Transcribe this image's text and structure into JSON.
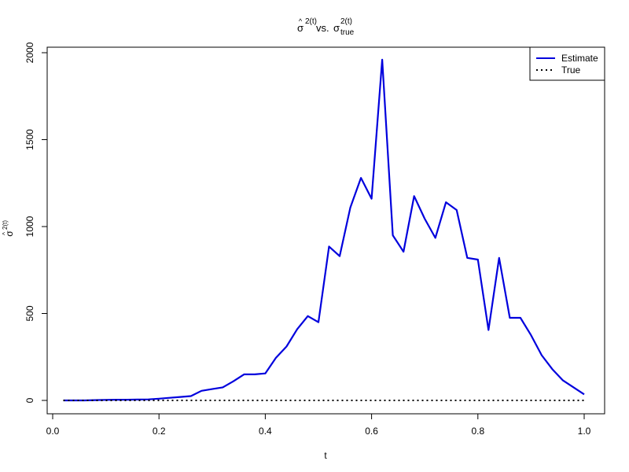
{
  "chart_data": {
    "type": "line",
    "title": {
      "sigma": "σ",
      "hat": "^",
      "sup_left": "2(t)",
      "vs": "vs.",
      "sup_right": "2(t)",
      "sub_right": "true"
    },
    "xlabel": "t",
    "ylabel": {
      "sigma": "σ",
      "hat": "^",
      "sup": "2(t)"
    },
    "xlim": [
      0.0,
      1.0
    ],
    "ylim": [
      0,
      2000
    ],
    "xticks": [
      0.0,
      0.2,
      0.4,
      0.6,
      0.8,
      1.0
    ],
    "xtick_labels": [
      "0.0",
      "0.2",
      "0.4",
      "0.6",
      "0.8",
      "1.0"
    ],
    "yticks": [
      0,
      500,
      1000,
      1500,
      2000
    ],
    "ytick_labels": [
      "0",
      "500",
      "1000",
      "1500",
      "2000"
    ],
    "grid": false,
    "legend_position": "top-right",
    "series": [
      {
        "name": "Estimate",
        "color": "#0000dd",
        "style": "solid",
        "x": [
          0.02,
          0.04,
          0.06,
          0.08,
          0.1,
          0.12,
          0.14,
          0.16,
          0.18,
          0.2,
          0.22,
          0.24,
          0.26,
          0.28,
          0.3,
          0.32,
          0.34,
          0.36,
          0.38,
          0.4,
          0.42,
          0.44,
          0.46,
          0.48,
          0.5,
          0.52,
          0.54,
          0.56,
          0.58,
          0.6,
          0.62,
          0.64,
          0.66,
          0.68,
          0.7,
          0.72,
          0.74,
          0.76,
          0.78,
          0.8,
          0.82,
          0.84,
          0.86,
          0.88,
          0.9,
          0.92,
          0.94,
          0.96,
          0.98,
          1.0
        ],
        "values": [
          0,
          0,
          0,
          2,
          3,
          4,
          4,
          5,
          6,
          10,
          15,
          20,
          25,
          55,
          65,
          75,
          110,
          150,
          150,
          155,
          245,
          310,
          410,
          485,
          450,
          885,
          830,
          1110,
          1280,
          1160,
          1960,
          950,
          855,
          1175,
          1045,
          935,
          1140,
          1095,
          820,
          810,
          405,
          820,
          475,
          475,
          375,
          260,
          180,
          115,
          75,
          35
        ]
      },
      {
        "name": "True",
        "color": "#000000",
        "style": "dotted",
        "x": [
          0.02,
          1.0
        ],
        "values": [
          0,
          0
        ]
      }
    ]
  }
}
